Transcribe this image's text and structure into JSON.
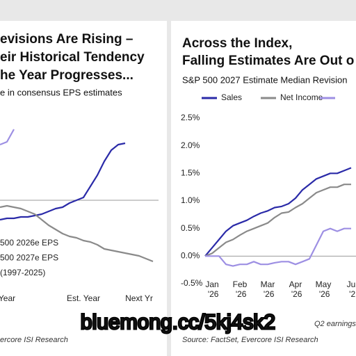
{
  "charts": [
    {
      "type": "line",
      "title_lines": [
        "evisions Are Rising –",
        "eir Historical Tendency",
        "he Year Progresses..."
      ],
      "subtitle": "e in consensus EPS estimates",
      "categories": [
        null,
        "Year",
        null,
        null,
        null,
        null,
        null,
        null,
        null,
        null,
        null,
        null,
        "Est. Year",
        null,
        null,
        null,
        null,
        null,
        null,
        null,
        "Next Yr",
        null,
        null
      ],
      "ylim": [
        -2.8,
        3.45
      ],
      "series": [
        {
          "name": "500 2026e EPS",
          "color": "#2a2aa8",
          "values": [
            -0.7,
            -0.65,
            -0.65,
            -0.6,
            -0.6,
            -0.55,
            -0.5,
            -0.4,
            -0.3,
            -0.25,
            -0.1,
            0,
            0.1,
            0.5,
            0.9,
            1.4,
            1.8,
            2.0,
            2.05,
            null,
            null,
            null,
            null
          ]
        },
        {
          "name": "500 2027e EPS",
          "color": "#9d8fe3",
          "values": [
            2.0,
            2.1,
            2.55,
            null,
            null,
            null,
            null,
            null,
            null,
            null,
            null,
            null,
            null,
            null,
            null,
            null,
            null,
            null,
            null,
            null,
            null,
            null,
            null
          ]
        },
        {
          "name": "(1997-2025)",
          "color": "#8a8a8a",
          "values": [
            -0.25,
            -0.2,
            -0.25,
            -0.3,
            -0.4,
            -0.5,
            -0.7,
            -0.9,
            -1.05,
            -1.2,
            -1.3,
            -1.35,
            -1.45,
            -1.5,
            -1.6,
            -1.75,
            -1.8,
            -1.85,
            -1.9,
            -1.95,
            -2.0,
            -2.1,
            -2.2
          ]
        }
      ],
      "source": "ercore ISI Research"
    },
    {
      "type": "line",
      "title_lines": [
        "Across the Index,",
        "Falling Estimates Are Out o"
      ],
      "subtitle": "S&P 500 2027 Estimate Median Revision",
      "categories": [
        null,
        "Jan '26",
        null,
        null,
        null,
        "Feb '26",
        null,
        null,
        null,
        "Mar '26",
        null,
        null,
        null,
        "Apr '26",
        null,
        null,
        null,
        "May '26",
        null,
        null,
        null,
        "Ju '2"
      ],
      "ylim": [
        -0.5,
        2.5
      ],
      "yticks": [
        {
          "value": 2.5,
          "label": "2.5%"
        },
        {
          "value": 2.0,
          "label": "2.0%"
        },
        {
          "value": 1.5,
          "label": "1.5%"
        },
        {
          "value": 1.0,
          "label": "1.0%"
        },
        {
          "value": 0.5,
          "label": "0.5%"
        },
        {
          "value": 0.0,
          "label": "0.0%"
        },
        {
          "value": -0.5,
          "label": "-0.5%"
        }
      ],
      "series": [
        {
          "name": "Sales",
          "color": "#2a2aa8",
          "values": [
            0,
            0.15,
            0.3,
            0.45,
            0.55,
            0.6,
            0.65,
            0.72,
            0.78,
            0.82,
            0.88,
            0.9,
            0.95,
            1.05,
            1.2,
            1.3,
            1.4,
            1.45,
            1.5,
            1.5,
            1.55,
            1.6
          ]
        },
        {
          "name": "Net Income",
          "color": "#8a8a8a",
          "values": [
            0,
            0.05,
            0.15,
            0.25,
            0.3,
            0.38,
            0.45,
            0.5,
            0.55,
            0.6,
            0.7,
            0.78,
            0.8,
            0.88,
            0.95,
            1.05,
            1.15,
            1.2,
            1.25,
            1.25,
            1.3,
            1.3
          ]
        },
        {
          "color": "#9d8fe3",
          "values": [
            0,
            0,
            0,
            -0.15,
            -0.18,
            -0.15,
            -0.15,
            -0.1,
            -0.15,
            -0.15,
            -0.12,
            -0.1,
            -0.1,
            -0.15,
            -0.1,
            -0.05,
            0.2,
            0.45,
            0.5,
            0.45,
            0.5,
            0.5
          ]
        }
      ],
      "footnote": "Q2 earnings",
      "source": "Source: FactSet, Evercore ISI Research"
    }
  ],
  "watermark": "bluemong.cc/5kj4sk2"
}
